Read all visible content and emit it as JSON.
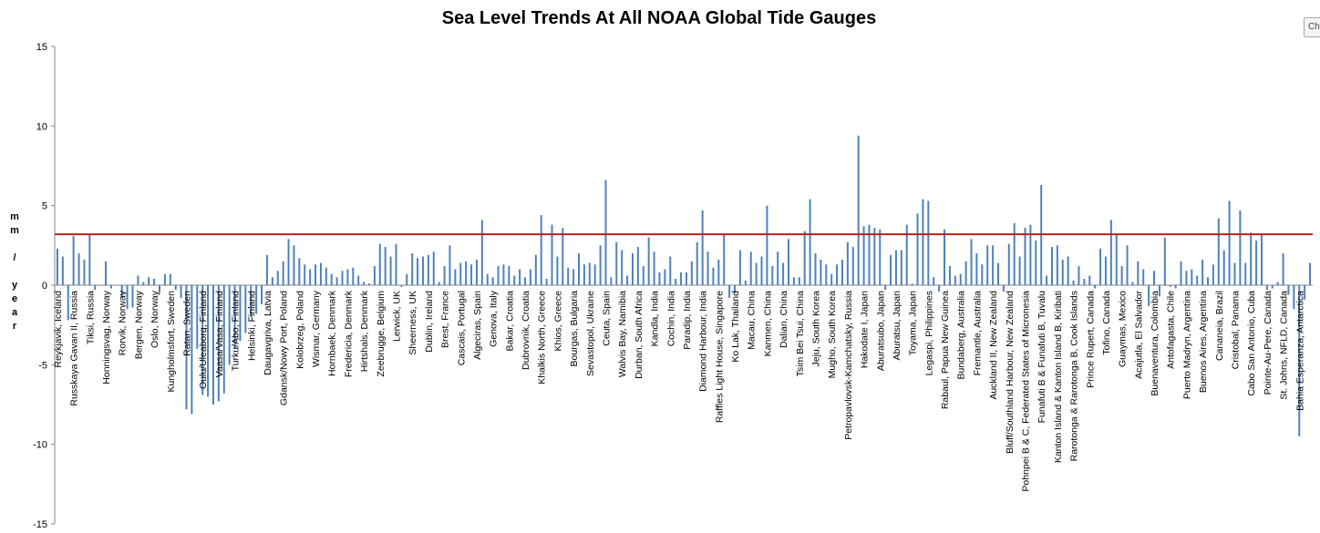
{
  "chart_data": {
    "type": "bar",
    "title": "Sea Level Trends At All NOAA Global Tide Gauges",
    "y_label": "mm / year",
    "button": "Ch",
    "color": "#4f81bd",
    "reference_line": {
      "value": 3.2,
      "color": "#c0201c"
    },
    "ylim": [
      -15,
      15
    ],
    "yticks": [
      15,
      10,
      5,
      0,
      -5,
      -10,
      -15
    ],
    "categories": [
      "Reykjavik, Iceland",
      null,
      null,
      "Russkaya Gavan II, Russia",
      null,
      null,
      "Tiksi, Russia",
      null,
      null,
      "Honningsvag, Norway",
      null,
      null,
      "Rorvik, Norway",
      null,
      null,
      "Bergen, Norway",
      null,
      null,
      "Oslo, Norway",
      null,
      null,
      "Kungholmsfort, Sweden",
      null,
      null,
      "Ratan, Sweden",
      null,
      null,
      "Oulu/Uleaborg, Finland",
      null,
      null,
      "Vaasa/Vasa, Finland",
      null,
      null,
      "Turku/Abo, Finland",
      null,
      null,
      "Helsinki, Finland",
      null,
      null,
      "Daugavgriva, Latvia",
      null,
      null,
      "Gdansk/Nowy Port, Poland",
      null,
      null,
      "Kolobrzeg, Poland",
      null,
      null,
      "Wismar, Germany",
      null,
      null,
      "Hornbaek, Denmark",
      null,
      null,
      "Fredericia, Denmark",
      null,
      null,
      "Hirtshals, Denmark",
      null,
      null,
      "Zeebrugge, Belgium",
      null,
      null,
      "Lerwick, UK",
      null,
      null,
      "Sheerness, UK",
      null,
      null,
      "Dublin, Ireland",
      null,
      null,
      "Brest, France",
      null,
      null,
      "Cascais, Portugal",
      null,
      null,
      "Algeciras, Spain",
      null,
      null,
      "Genova, Italy",
      null,
      null,
      "Bakar, Croatia",
      null,
      null,
      "Dubrovnik, Croatia",
      null,
      null,
      "Khalkis North, Greece",
      null,
      null,
      "Khios, Greece",
      null,
      null,
      "Bourgas, Bulgaria",
      null,
      null,
      "Sevastopol, Ukraine",
      null,
      null,
      "Ceuta, Spain",
      null,
      null,
      "Walvis Bay, Namibia",
      null,
      null,
      "Durban, South Africa",
      null,
      null,
      "Kandla, India",
      null,
      null,
      "Cochin, India",
      null,
      null,
      "Paradip, India",
      null,
      null,
      "Diamond Harbour, India",
      null,
      null,
      "Raffles Light House, Singapore",
      null,
      null,
      "Ko Lak, Thailand",
      null,
      null,
      "Macau, China",
      null,
      null,
      "Kanmen, China",
      null,
      null,
      "Dalian, China",
      null,
      null,
      "Tsim Bei Tsui, China",
      null,
      null,
      "Jeju, South Korea",
      null,
      null,
      "Mugho, South Korea",
      null,
      null,
      "Petropavlovsk-Kamchatsky, Russia",
      null,
      null,
      "Hakodate I, Japan",
      null,
      null,
      "Aburatsubo, Japan",
      null,
      null,
      "Aburatsu, Japan",
      null,
      null,
      "Toyama, Japan",
      null,
      null,
      "Legaspi, Philippines",
      null,
      null,
      "Rabaul, Papua New Guinea",
      null,
      null,
      "Bundaberg, Australia",
      null,
      null,
      "Fremantle, Australia",
      null,
      null,
      "Auckland II, New Zealand",
      null,
      null,
      "Bluff/Southland Harbour, New Zealand",
      null,
      null,
      "Pohnpei B & C, Federated States of Micronesia",
      null,
      null,
      "Funafuti B & Funafuti B, Tuvalu",
      null,
      null,
      "Kanton Island & Kanton Island B, Kiribati",
      null,
      null,
      "Rarotonga & Rarotonga B, Cook Islands",
      null,
      null,
      "Prince Rupert, Canada",
      null,
      null,
      "Tofino, Canada",
      null,
      null,
      "Guaymas, Mexico",
      null,
      null,
      "Acajutla, El Salvador",
      null,
      null,
      "Buenaventura, Colombia",
      null,
      null,
      "Antofagasta, Chile",
      null,
      null,
      "Puerto Madryn, Argentina",
      null,
      null,
      "Buenos Aires, Argentina",
      null,
      null,
      "Cananeia, Brazil",
      null,
      null,
      "Cristobal, Panama",
      null,
      null,
      "Cabo San Antonio, Cuba",
      null,
      null,
      "Pointe-Au-Pere, Canada",
      null,
      null,
      "St. Johns, NFLD, Canada",
      null,
      null,
      "Bahia Esperanza, Antarctica",
      null,
      null
    ],
    "values": [
      2.3,
      1.8,
      -2.2,
      3.1,
      2.0,
      1.6,
      3.2,
      -0.3,
      0,
      1.5,
      -0.2,
      0,
      -0.8,
      -1.5,
      -1.4,
      0.6,
      0.2,
      0.5,
      0.4,
      -0.5,
      0.7,
      0.7,
      -0.3,
      -0.8,
      -7.8,
      -8.1,
      -4,
      -6.9,
      -7.0,
      -7.5,
      -7.3,
      -6.8,
      -5.0,
      -4,
      -3.5,
      -3.0,
      -2.0,
      -1.8,
      -1.2,
      1.9,
      0.5,
      0.9,
      1.5,
      2.9,
      2.5,
      1.7,
      1.3,
      1.0,
      1.3,
      1.4,
      1.1,
      0.7,
      0.5,
      0.9,
      1.0,
      1.1,
      0.6,
      0.2,
      0.1,
      1.2,
      2.6,
      2.4,
      1.8,
      2.6,
      -0.1,
      0.7,
      2.0,
      1.7,
      1.8,
      1.9,
      2.1,
      0.2,
      1.2,
      2.5,
      1.0,
      1.4,
      1.5,
      1.3,
      1.6,
      4.1,
      0.7,
      0.5,
      1.2,
      1.3,
      1.2,
      0.6,
      1.0,
      0.5,
      1.0,
      1.9,
      4.4,
      0.4,
      3.8,
      1.8,
      3.6,
      1.1,
      1.0,
      2.0,
      1.3,
      1.4,
      1.3,
      2.5,
      6.6,
      0.5,
      2.7,
      2.2,
      0.6,
      2.0,
      2.4,
      1.2,
      3.0,
      2.1,
      0.8,
      1.0,
      1.8,
      0.4,
      0.8,
      0.8,
      1.5,
      2.7,
      4.7,
      2.1,
      1.1,
      1.6,
      3.2,
      -0.8,
      -0.5,
      2.2,
      0.3,
      2.1,
      1.4,
      1.8,
      5.0,
      1.2,
      2.1,
      1.4,
      2.9,
      0.5,
      0.5,
      3.4,
      5.4,
      2.0,
      1.6,
      1.3,
      0.7,
      1.3,
      1.6,
      2.7,
      2.4,
      9.4,
      3.7,
      3.8,
      3.6,
      3.5,
      -0.3,
      1.9,
      2.2,
      2.2,
      3.8,
      0.1,
      4.5,
      5.4,
      5.3,
      0.5,
      -0.4,
      3.5,
      1.2,
      0.6,
      0.7,
      1.5,
      2.9,
      2.0,
      1.3,
      2.5,
      2.5,
      1.4,
      -0.4,
      2.6,
      3.9,
      1.8,
      3.6,
      3.8,
      2.8,
      6.3,
      0.6,
      2.4,
      2.5,
      1.6,
      1.8,
      0.3,
      1.2,
      0.4,
      0.6,
      -0.2,
      2.3,
      1.8,
      4.1,
      3.2,
      1.2,
      2.5,
      0.2,
      1.5,
      1.0,
      -1.3,
      0.9,
      -0.7,
      3.0,
      -0.1,
      -0.2,
      1.5,
      0.9,
      1.0,
      0.6,
      1.6,
      0.5,
      1.3,
      4.2,
      2.2,
      5.3,
      1.4,
      4.7,
      1.4,
      3.3,
      2.8,
      3.2,
      -0.3,
      -0.2,
      0.2,
      2.0,
      -0.6,
      -1.5,
      -9.5,
      -0.9,
      1.4
    ]
  }
}
